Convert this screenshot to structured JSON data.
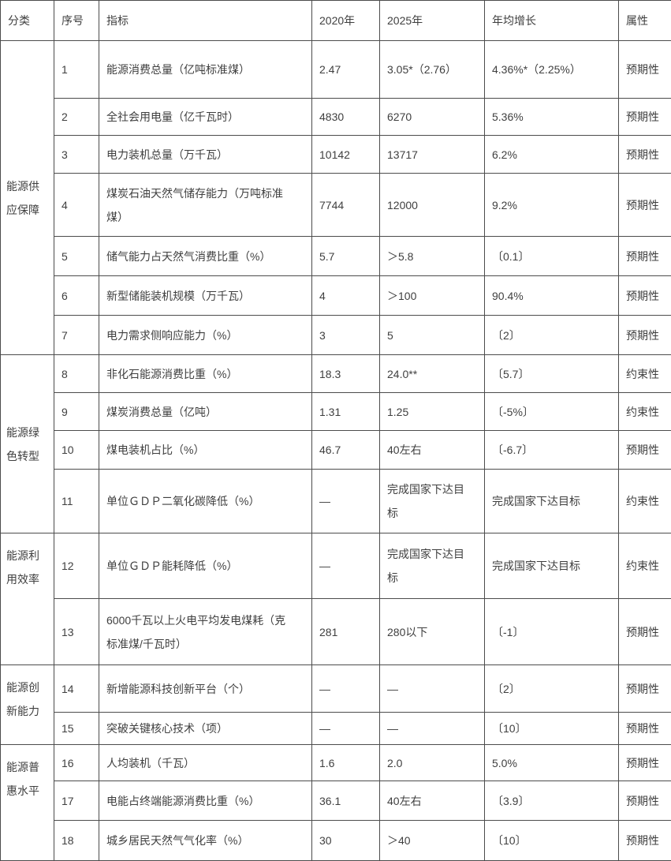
{
  "page": {
    "background_color": "#ffffff",
    "border_color": "#4c4c4c",
    "text_color": "#3f3f3f"
  },
  "table": {
    "columns": [
      {
        "key": "category",
        "label": "分类"
      },
      {
        "key": "no",
        "label": "序号"
      },
      {
        "key": "indicator",
        "label": "指标"
      },
      {
        "key": "y2020",
        "label": "2020年"
      },
      {
        "key": "y2025",
        "label": "2025年"
      },
      {
        "key": "growth",
        "label": "年均增长"
      },
      {
        "key": "attr",
        "label": "属性"
      }
    ],
    "categories": [
      {
        "name": "能源供\n应保障",
        "rows": [
          {
            "no": "1",
            "indicator": "能源消费总量（亿吨标准煤）",
            "y2020": "2.47",
            "y2025": "3.05*（2.76）",
            "growth": "4.36%*（2.25%）",
            "attr": "预期性"
          },
          {
            "no": "2",
            "indicator": "全社会用电量（亿千瓦时）",
            "y2020": "4830",
            "y2025": "6270",
            "growth": "5.36%",
            "attr": "预期性"
          },
          {
            "no": "3",
            "indicator": "电力装机总量（万千瓦）",
            "y2020": "10142",
            "y2025": "13717",
            "growth": "6.2%",
            "attr": "预期性"
          },
          {
            "no": "4",
            "indicator": "煤炭石油天然气储存能力（万吨标准\n煤）",
            "y2020": "7744",
            "y2025": "12000",
            "growth": "9.2%",
            "attr": "预期性"
          },
          {
            "no": "5",
            "indicator": "储气能力占天然气消费比重（%）",
            "y2020": "5.7",
            "y2025": "＞5.8",
            "growth": "〔0.1〕",
            "attr": "预期性"
          },
          {
            "no": "6",
            "indicator": "新型储能装机规模（万千瓦）",
            "y2020": "4",
            "y2025": "＞100",
            "growth": "90.4%",
            "attr": "预期性"
          },
          {
            "no": "7",
            "indicator": "电力需求侧响应能力（%）",
            "y2020": "3",
            "y2025": "5",
            "growth": "〔2〕",
            "attr": "预期性"
          }
        ]
      },
      {
        "name": "能源绿\n色转型",
        "rows": [
          {
            "no": "8",
            "indicator": "非化石能源消费比重（%）",
            "y2020": "18.3",
            "y2025": "24.0**",
            "growth": "〔5.7〕",
            "attr": "约束性"
          },
          {
            "no": "9",
            "indicator": "煤炭消费总量（亿吨）",
            "y2020": "1.31",
            "y2025": "1.25",
            "growth": "〔-5%〕",
            "attr": "约束性"
          },
          {
            "no": "10",
            "indicator": "煤电装机占比（%）",
            "y2020": "46.7",
            "y2025": "40左右",
            "growth": "〔-6.7〕",
            "attr": "预期性"
          },
          {
            "no": "11",
            "indicator": "单位ＧＤＰ二氧化碳降低（%）",
            "y2020": "—",
            "y2025": "完成国家下达目\n标",
            "growth": "完成国家下达目标",
            "attr": "约束性"
          }
        ]
      },
      {
        "name": "能源利\n用效率",
        "rows": [
          {
            "no": "12",
            "indicator": "单位ＧＤＰ能耗降低（%）",
            "y2020": "—",
            "y2025": "完成国家下达目\n标",
            "growth": "完成国家下达目标",
            "attr": "约束性"
          },
          {
            "no": "13",
            "indicator": "6000千瓦以上火电平均发电煤耗（克\n标准煤/千瓦时）",
            "y2020": "281",
            "y2025": "280以下",
            "growth": "〔-1〕",
            "attr": "预期性"
          }
        ]
      },
      {
        "name": "能源创\n新能力",
        "rows": [
          {
            "no": "14",
            "indicator": "新增能源科技创新平台（个）",
            "y2020": "—",
            "y2025": "—",
            "growth": "〔2〕",
            "attr": "预期性"
          },
          {
            "no": "15",
            "indicator": "突破关键核心技术（项）",
            "y2020": "—",
            "y2025": "—",
            "growth": "〔10〕",
            "attr": "预期性"
          }
        ]
      },
      {
        "name": "能源普\n惠水平",
        "rows": [
          {
            "no": "16",
            "indicator": "人均装机（千瓦）",
            "y2020": "1.6",
            "y2025": "2.0",
            "growth": "5.0%",
            "attr": "预期性"
          },
          {
            "no": "17",
            "indicator": "电能占终端能源消费比重（%）",
            "y2020": "36.1",
            "y2025": "40左右",
            "growth": "〔3.9〕",
            "attr": "预期性"
          },
          {
            "no": "18",
            "indicator": "城乡居民天然气气化率（%）",
            "y2020": "30",
            "y2025": "＞40",
            "growth": "〔10〕",
            "attr": "预期性"
          }
        ]
      }
    ]
  }
}
